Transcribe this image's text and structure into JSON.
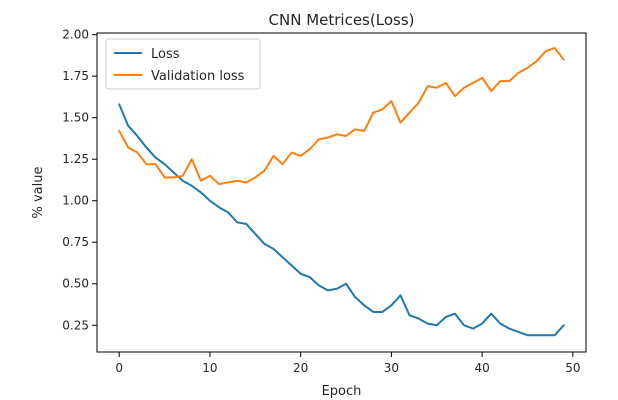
{
  "chart_data": {
    "type": "line",
    "title": "CNN Metrices(Loss)",
    "xlabel": "Epoch",
    "ylabel": "% value",
    "xlim": [
      -2.45,
      51.45
    ],
    "ylim": [
      0.089,
      2.01
    ],
    "xticks": [
      0,
      10,
      20,
      30,
      40,
      50
    ],
    "xtick_labels": [
      "0",
      "10",
      "20",
      "30",
      "40",
      "50"
    ],
    "yticks": [
      0.25,
      0.5,
      0.75,
      1.0,
      1.25,
      1.5,
      1.75,
      2.0
    ],
    "ytick_labels": [
      "0.25",
      "0.50",
      "0.75",
      "1.00",
      "1.25",
      "1.50",
      "1.75",
      "2.00"
    ],
    "grid": false,
    "legend_position": "top-left",
    "x": [
      0,
      1,
      2,
      3,
      4,
      5,
      6,
      7,
      8,
      9,
      10,
      11,
      12,
      13,
      14,
      15,
      16,
      17,
      18,
      19,
      20,
      21,
      22,
      23,
      24,
      25,
      26,
      27,
      28,
      29,
      30,
      31,
      32,
      33,
      34,
      35,
      36,
      37,
      38,
      39,
      40,
      41,
      42,
      43,
      44,
      45,
      46,
      47,
      48,
      49
    ],
    "series": [
      {
        "name": "Loss",
        "color": "#1f77b4",
        "values": [
          1.58,
          1.45,
          1.39,
          1.32,
          1.26,
          1.22,
          1.17,
          1.12,
          1.09,
          1.05,
          1.0,
          0.96,
          0.93,
          0.87,
          0.86,
          0.8,
          0.74,
          0.71,
          0.66,
          0.61,
          0.56,
          0.54,
          0.49,
          0.46,
          0.47,
          0.5,
          0.42,
          0.37,
          0.33,
          0.33,
          0.37,
          0.43,
          0.31,
          0.29,
          0.26,
          0.25,
          0.3,
          0.32,
          0.25,
          0.23,
          0.26,
          0.32,
          0.26,
          0.23,
          0.21,
          0.19,
          0.19,
          0.19,
          0.19,
          0.25
        ]
      },
      {
        "name": "Validation loss",
        "color": "#ff7f0e",
        "values": [
          1.42,
          1.32,
          1.29,
          1.22,
          1.22,
          1.14,
          1.14,
          1.15,
          1.25,
          1.12,
          1.15,
          1.1,
          1.11,
          1.12,
          1.11,
          1.14,
          1.18,
          1.27,
          1.22,
          1.29,
          1.27,
          1.31,
          1.37,
          1.38,
          1.4,
          1.39,
          1.43,
          1.42,
          1.53,
          1.55,
          1.6,
          1.47,
          1.53,
          1.59,
          1.69,
          1.68,
          1.71,
          1.63,
          1.68,
          1.71,
          1.74,
          1.66,
          1.72,
          1.72,
          1.77,
          1.8,
          1.84,
          1.9,
          1.92,
          1.85
        ]
      }
    ]
  }
}
